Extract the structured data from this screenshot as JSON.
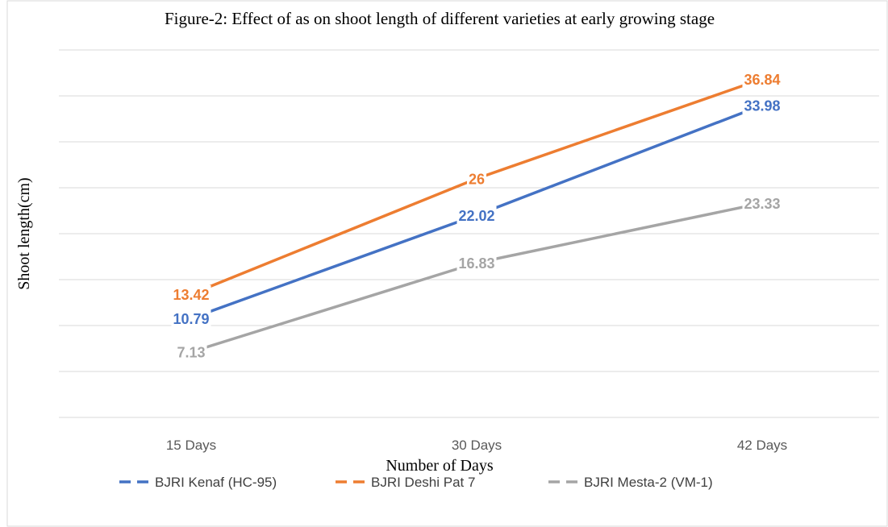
{
  "chart_data": {
    "type": "line",
    "title": "Figure-2: Effect of as on shoot length of different varieties at early growing stage",
    "x_label": "Number of Days",
    "y_label": "Shoot length(cm)",
    "categories": [
      "15 Days",
      "30 Days",
      "42 Days"
    ],
    "series": [
      {
        "name": "BJRI Kenaf (HC-95)",
        "color": "#4472c4",
        "values": [
          10.79,
          22.02,
          33.98
        ]
      },
      {
        "name": "BJRI Deshi Pat 7",
        "color": "#ed7d31",
        "values": [
          13.42,
          26,
          36.84
        ]
      },
      {
        "name": "BJRI Mesta-2 (VM-1)",
        "color": "#a5a5a5",
        "values": [
          7.13,
          16.83,
          23.33
        ]
      }
    ],
    "ylim": [
      0,
      40
    ],
    "yticks": [
      0,
      5,
      10,
      15,
      20,
      25,
      30,
      35,
      40
    ],
    "grid": true,
    "legend": "bottom"
  }
}
